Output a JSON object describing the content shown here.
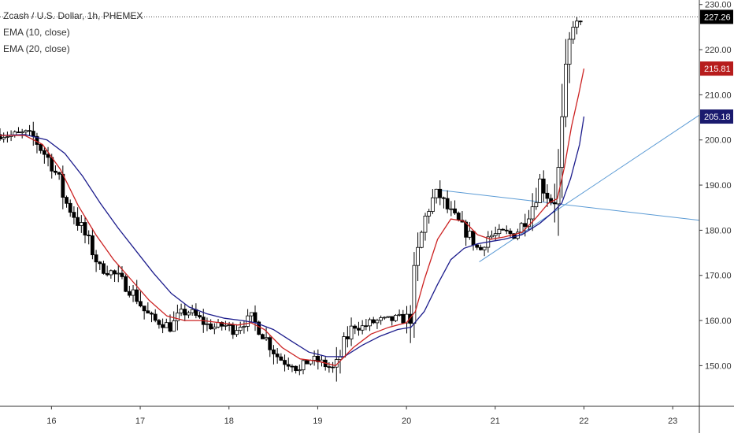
{
  "legend": {
    "symbol": "Zcash / U.S. Dollar, 1h, PHEMEX",
    "ema10": "EMA (10, close)",
    "ema20": "EMA (20, close)"
  },
  "colors": {
    "up": "#ffffff",
    "down": "#000000",
    "ema10": "#cc2222",
    "ema20": "#1c1c8c",
    "trendline": "#5b9bd5",
    "last_price_badge": "#000000",
    "ema10_badge": "#b71c1c",
    "ema20_badge": "#1a1a6e"
  },
  "chart_data": {
    "type": "candlestick",
    "title": "Zcash / U.S. Dollar, 1h, PHEMEX",
    "x_tick_labels": [
      "16",
      "17",
      "18",
      "19",
      "20",
      "21",
      "22",
      "23"
    ],
    "y_tick_labels": [
      "150.00",
      "160.00",
      "170.00",
      "180.00",
      "190.00",
      "200.00",
      "210.00",
      "220.00",
      "230.00"
    ],
    "ylim": [
      141,
      231
    ],
    "xlim": [
      15.42,
      23.3
    ],
    "x_ticks": [
      16,
      17,
      18,
      19,
      20,
      21,
      22,
      23
    ],
    "y_ticks": [
      150,
      160,
      170,
      180,
      190,
      200,
      210,
      220,
      230
    ],
    "last_price": 227.26,
    "ema10_last": 215.81,
    "ema20_last": 205.18,
    "price_labels": {
      "last": "227.26",
      "ema10": "215.81",
      "ema20": "205.18"
    },
    "trendlines": [
      {
        "x": [
          20.32,
          23.3
        ],
        "y": [
          189.0,
          182.2
        ]
      },
      {
        "x": [
          20.82,
          23.3
        ],
        "y": [
          173.0,
          205.5
        ]
      }
    ],
    "price_path": [
      [
        15.42,
        201.2
      ],
      [
        15.55,
        201.0
      ],
      [
        15.7,
        201.5
      ],
      [
        15.8,
        200.5
      ],
      [
        15.9,
        197.5
      ],
      [
        16.0,
        195.0
      ],
      [
        16.08,
        191.0
      ],
      [
        16.15,
        186.5
      ],
      [
        16.25,
        183.5
      ],
      [
        16.35,
        180.0
      ],
      [
        16.45,
        176.0
      ],
      [
        16.55,
        171.5
      ],
      [
        16.65,
        171.0
      ],
      [
        16.75,
        169.5
      ],
      [
        16.85,
        167.5
      ],
      [
        16.95,
        165.5
      ],
      [
        17.05,
        162.0
      ],
      [
        17.15,
        160.0
      ],
      [
        17.25,
        159.5
      ],
      [
        17.35,
        158.5
      ],
      [
        17.45,
        161.5
      ],
      [
        17.55,
        162.0
      ],
      [
        17.65,
        160.5
      ],
      [
        17.75,
        159.0
      ],
      [
        17.85,
        158.5
      ],
      [
        17.95,
        159.0
      ],
      [
        18.05,
        158.0
      ],
      [
        18.15,
        159.5
      ],
      [
        18.25,
        160.5
      ],
      [
        18.35,
        158.0
      ],
      [
        18.45,
        155.0
      ],
      [
        18.55,
        152.0
      ],
      [
        18.65,
        150.5
      ],
      [
        18.72,
        151.0
      ],
      [
        18.8,
        148.5
      ],
      [
        18.9,
        151.5
      ],
      [
        19.0,
        151.0
      ],
      [
        19.1,
        150.0
      ],
      [
        19.2,
        149.0
      ],
      [
        19.3,
        155.0
      ],
      [
        19.4,
        159.0
      ],
      [
        19.5,
        158.5
      ],
      [
        19.6,
        159.5
      ],
      [
        19.7,
        160.0
      ],
      [
        19.8,
        160.0
      ],
      [
        19.9,
        160.5
      ],
      [
        20.03,
        160.0
      ],
      [
        20.08,
        168.0
      ],
      [
        20.14,
        176.0
      ],
      [
        20.2,
        182.0
      ],
      [
        20.27,
        186.0
      ],
      [
        20.35,
        188.5
      ],
      [
        20.45,
        185.0
      ],
      [
        20.55,
        182.5
      ],
      [
        20.65,
        180.0
      ],
      [
        20.75,
        178.0
      ],
      [
        20.82,
        175.0
      ],
      [
        20.9,
        178.5
      ],
      [
        21.0,
        179.0
      ],
      [
        21.1,
        179.5
      ],
      [
        21.2,
        179.0
      ],
      [
        21.28,
        180.5
      ],
      [
        21.35,
        183.0
      ],
      [
        21.43,
        186.0
      ],
      [
        21.5,
        191.0
      ],
      [
        21.58,
        188.0
      ],
      [
        21.65,
        186.0
      ],
      [
        21.7,
        189.5
      ],
      [
        21.74,
        198.0
      ],
      [
        21.78,
        208.0
      ],
      [
        21.82,
        218.0
      ],
      [
        21.86,
        225.0
      ],
      [
        21.9,
        226.5
      ],
      [
        21.95,
        224.0
      ],
      [
        22.0,
        227.26
      ]
    ],
    "ema10_path": [
      [
        15.42,
        201.0
      ],
      [
        15.7,
        201.0
      ],
      [
        15.9,
        199.0
      ],
      [
        16.1,
        193.5
      ],
      [
        16.3,
        185.5
      ],
      [
        16.5,
        179.0
      ],
      [
        16.7,
        173.5
      ],
      [
        16.9,
        169.0
      ],
      [
        17.1,
        164.5
      ],
      [
        17.3,
        161.0
      ],
      [
        17.5,
        160.0
      ],
      [
        17.7,
        160.0
      ],
      [
        17.9,
        159.5
      ],
      [
        18.1,
        159.0
      ],
      [
        18.25,
        159.5
      ],
      [
        18.4,
        158.0
      ],
      [
        18.6,
        154.0
      ],
      [
        18.8,
        151.5
      ],
      [
        19.0,
        151.0
      ],
      [
        19.2,
        150.0
      ],
      [
        19.4,
        154.0
      ],
      [
        19.6,
        157.0
      ],
      [
        19.8,
        158.5
      ],
      [
        20.0,
        159.5
      ],
      [
        20.1,
        162.0
      ],
      [
        20.2,
        169.0
      ],
      [
        20.35,
        178.0
      ],
      [
        20.5,
        182.5
      ],
      [
        20.65,
        182.0
      ],
      [
        20.8,
        179.0
      ],
      [
        20.95,
        178.0
      ],
      [
        21.1,
        178.5
      ],
      [
        21.3,
        179.5
      ],
      [
        21.45,
        182.5
      ],
      [
        21.6,
        186.0
      ],
      [
        21.7,
        187.0
      ],
      [
        21.78,
        194.0
      ],
      [
        21.86,
        203.0
      ],
      [
        21.94,
        210.0
      ],
      [
        22.0,
        215.81
      ]
    ],
    "ema20_path": [
      [
        15.42,
        201.0
      ],
      [
        15.7,
        201.2
      ],
      [
        15.95,
        200.0
      ],
      [
        16.15,
        197.0
      ],
      [
        16.35,
        192.0
      ],
      [
        16.55,
        186.0
      ],
      [
        16.75,
        180.5
      ],
      [
        16.95,
        175.5
      ],
      [
        17.15,
        170.5
      ],
      [
        17.35,
        166.0
      ],
      [
        17.55,
        163.0
      ],
      [
        17.75,
        161.5
      ],
      [
        17.95,
        160.5
      ],
      [
        18.15,
        160.0
      ],
      [
        18.3,
        159.5
      ],
      [
        18.5,
        158.0
      ],
      [
        18.7,
        155.5
      ],
      [
        18.9,
        153.0
      ],
      [
        19.1,
        152.0
      ],
      [
        19.3,
        152.0
      ],
      [
        19.5,
        154.5
      ],
      [
        19.7,
        156.5
      ],
      [
        19.9,
        158.0
      ],
      [
        20.05,
        158.5
      ],
      [
        20.2,
        162.0
      ],
      [
        20.35,
        168.0
      ],
      [
        20.5,
        173.5
      ],
      [
        20.65,
        176.0
      ],
      [
        20.8,
        177.0
      ],
      [
        20.95,
        177.5
      ],
      [
        21.1,
        178.0
      ],
      [
        21.3,
        179.0
      ],
      [
        21.5,
        181.5
      ],
      [
        21.65,
        184.0
      ],
      [
        21.75,
        186.0
      ],
      [
        21.85,
        191.5
      ],
      [
        21.95,
        199.0
      ],
      [
        22.0,
        205.18
      ]
    ]
  }
}
